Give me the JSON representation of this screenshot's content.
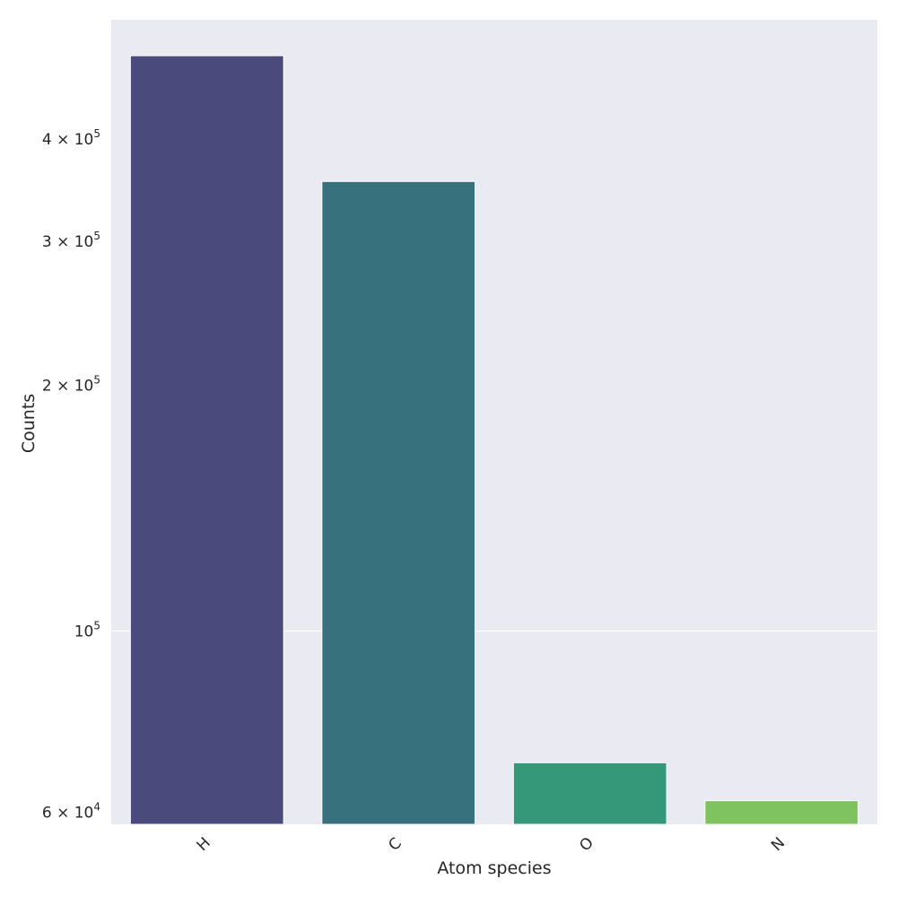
{
  "chart_data": {
    "type": "bar",
    "categories": [
      "H",
      "C",
      "O",
      "N"
    ],
    "values": [
      506000,
      355000,
      69000,
      62000
    ],
    "colors": [
      "#4a4b7c",
      "#38717e",
      "#359878",
      "#7fc360"
    ],
    "xlabel": "Atom species",
    "ylabel": "Counts",
    "yscale": "log",
    "ylim": [
      58000,
      560000
    ],
    "yticks": [
      {
        "value": 60000,
        "mantissa": "6",
        "exp": "4"
      },
      {
        "value": 100000,
        "mantissa": "",
        "exp": "5"
      },
      {
        "value": 200000,
        "mantissa": "2",
        "exp": "5"
      },
      {
        "value": 300000,
        "mantissa": "3",
        "exp": "5"
      },
      {
        "value": 400000,
        "mantissa": "4",
        "exp": "5"
      }
    ],
    "grid": true,
    "gridlines_at": [
      100000
    ],
    "background": "#eaeaf2",
    "xtick_rotation": 45
  }
}
